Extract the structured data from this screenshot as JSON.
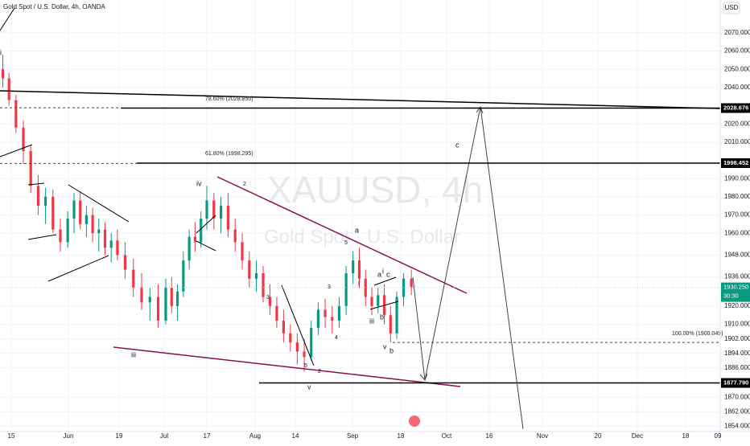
{
  "chart_data": {
    "type": "candlestick",
    "title": "Gold Spot / U.S. Dollar, 4h, OANDA",
    "watermark": {
      "symbol": "XAUUSD, 4h",
      "description": "Gold Spot · U.S. Dollar"
    },
    "currency": "USD",
    "up_color": "#089981",
    "down_color": "#f23645",
    "x": [
      132,
      134.2,
      136.4,
      138.6,
      140.8,
      143,
      145.2,
      147.4,
      149.6,
      151.8,
      154,
      156.2,
      158.4,
      160.6,
      162.8,
      165,
      167.2,
      169.4,
      171.6,
      173.8,
      176,
      178.2,
      180.4,
      182.6,
      184.8,
      187,
      189.2,
      191.4,
      193.6,
      195.8,
      198,
      200.2,
      202.4,
      204.6,
      206.8,
      209,
      211.2,
      213.4,
      215.6,
      217.8,
      220,
      222.2,
      224.4,
      226.6,
      228.8,
      231,
      233.2,
      235.4,
      237.6,
      239.8,
      242,
      244.2,
      246.4,
      248.6,
      250.8,
      253,
      255.2,
      257.4,
      259.6,
      261.8,
      264
    ],
    "open": [
      2050,
      2045,
      2033,
      2018,
      2005,
      1986,
      1975,
      1980,
      1962,
      1955,
      1968,
      1978,
      1965,
      1970,
      1960,
      1962,
      1952,
      1956,
      1948,
      1940,
      1930,
      1922,
      1925,
      1912,
      1930,
      1920,
      1928,
      1945,
      1958,
      1955,
      1968,
      1978,
      1968,
      1975,
      1962,
      1955,
      1945,
      1935,
      1938,
      1925,
      1920,
      1912,
      1905,
      1900,
      1895,
      1892,
      1908,
      1918,
      1914,
      1912,
      1920,
      1938,
      1945,
      1935,
      1925,
      1920,
      1926,
      1915,
      1905,
      1925,
      1935
    ],
    "high": [
      2058,
      2048,
      2036,
      2022,
      2008,
      1992,
      1985,
      1984,
      1968,
      1972,
      1982,
      1983,
      1975,
      1974,
      1968,
      1966,
      1960,
      1962,
      1955,
      1946,
      1938,
      1930,
      1932,
      1935,
      1936,
      1932,
      1950,
      1962,
      1966,
      1972,
      1986,
      1982,
      1980,
      1982,
      1968,
      1960,
      1950,
      1945,
      1942,
      1932,
      1925,
      1918,
      1910,
      1905,
      1902,
      1912,
      1922,
      1924,
      1920,
      1925,
      1942,
      1950,
      1952,
      1940,
      1930,
      1930,
      1932,
      1920,
      1928,
      1938,
      1940
    ],
    "low": [
      2040,
      2030,
      2015,
      1998,
      1982,
      1970,
      1965,
      1960,
      1950,
      1952,
      1960,
      1962,
      1958,
      1955,
      1950,
      1948,
      1944,
      1945,
      1935,
      1925,
      1918,
      1912,
      1908,
      1910,
      1916,
      1912,
      1925,
      1940,
      1950,
      1952,
      1962,
      1962,
      1960,
      1958,
      1950,
      1940,
      1930,
      1928,
      1922,
      1915,
      1908,
      1900,
      1895,
      1888,
      1884,
      1890,
      1904,
      1908,
      1905,
      1908,
      1915,
      1932,
      1930,
      1920,
      1915,
      1916,
      1910,
      1900,
      1902,
      1920,
      1926
    ],
    "close": [
      2045,
      2033,
      2018,
      2005,
      1986,
      1975,
      1980,
      1962,
      1955,
      1968,
      1978,
      1965,
      1970,
      1960,
      1962,
      1952,
      1956,
      1948,
      1940,
      1930,
      1922,
      1925,
      1912,
      1930,
      1920,
      1928,
      1945,
      1958,
      1955,
      1968,
      1978,
      1968,
      1975,
      1962,
      1955,
      1945,
      1935,
      1938,
      1925,
      1920,
      1912,
      1905,
      1900,
      1895,
      1892,
      1908,
      1918,
      1914,
      1912,
      1920,
      1938,
      1945,
      1935,
      1925,
      1920,
      1926,
      1915,
      1905,
      1925,
      1935,
      1930.25
    ],
    "xlim": [
      131,
      376
    ],
    "xticks": [
      {
        "value": 135,
        "label": "15"
      },
      {
        "value": 152,
        "label": "Jun"
      },
      {
        "value": 170,
        "label": "19"
      },
      {
        "value": 182,
        "label": "Jul"
      },
      {
        "value": 198,
        "label": "17"
      },
      {
        "value": 213,
        "label": "Aug"
      },
      {
        "value": 226,
        "label": "14"
      },
      {
        "value": 244,
        "label": "Sep"
      },
      {
        "value": 261,
        "label": "18"
      },
      {
        "value": 274,
        "label": "Oct"
      },
      {
        "value": 289,
        "label": "16"
      },
      {
        "value": 305,
        "label": "Nov"
      },
      {
        "value": 324,
        "label": "20"
      },
      {
        "value": 335,
        "label": "Dec"
      },
      {
        "value": 352,
        "label": "18"
      },
      {
        "value": 374,
        "label": "09"
      }
    ],
    "ylim": [
      1852,
      2088
    ],
    "yticks": [
      {
        "value": 2070,
        "label": "2070.000"
      },
      {
        "value": 2060,
        "label": "2060.000"
      },
      {
        "value": 2050,
        "label": "2050.000"
      },
      {
        "value": 2040,
        "label": "2040.000"
      },
      {
        "value": 2020,
        "label": "2020.000"
      },
      {
        "value": 2010,
        "label": "2010.000"
      },
      {
        "value": 1990,
        "label": "1990.000"
      },
      {
        "value": 1980,
        "label": "1980.000"
      },
      {
        "value": 1970,
        "label": "1970.000"
      },
      {
        "value": 1960,
        "label": "1960.000"
      },
      {
        "value": 1948,
        "label": "1948.000"
      },
      {
        "value": 1936,
        "label": "1936.000"
      },
      {
        "value": 1920,
        "label": "1920.000"
      },
      {
        "value": 1910,
        "label": "1910.000"
      },
      {
        "value": 1902,
        "label": "1902.000"
      },
      {
        "value": 1894,
        "label": "1894.000"
      },
      {
        "value": 1886,
        "label": "1886.000"
      },
      {
        "value": 1870,
        "label": "1870.000"
      },
      {
        "value": 1862,
        "label": "1862.000"
      },
      {
        "value": 1854,
        "label": "1854.000"
      }
    ],
    "levels": [
      2028.676,
      1998.452,
      {
        "value": 1877.79,
        "label": "1877.790"
      }
    ],
    "last_price": {
      "value": 1930.25,
      "label": "1930.250"
    },
    "countdown": "30:30",
    "fib": [
      {
        "value": 2028.85,
        "label": "78.60% (2028.850)"
      },
      {
        "value": 1998.295,
        "label": "61.80% (1998.295)"
      },
      {
        "value": 1900.049,
        "label": "100.00% (1900.049)"
      }
    ],
    "annotations": [
      "i",
      "iv",
      "2",
      "iii",
      "3",
      "5",
      "2",
      "v",
      "a",
      "5",
      "i",
      "a",
      "i",
      "c",
      "b",
      "iii",
      "v",
      "b",
      "c",
      "4",
      "3"
    ]
  }
}
